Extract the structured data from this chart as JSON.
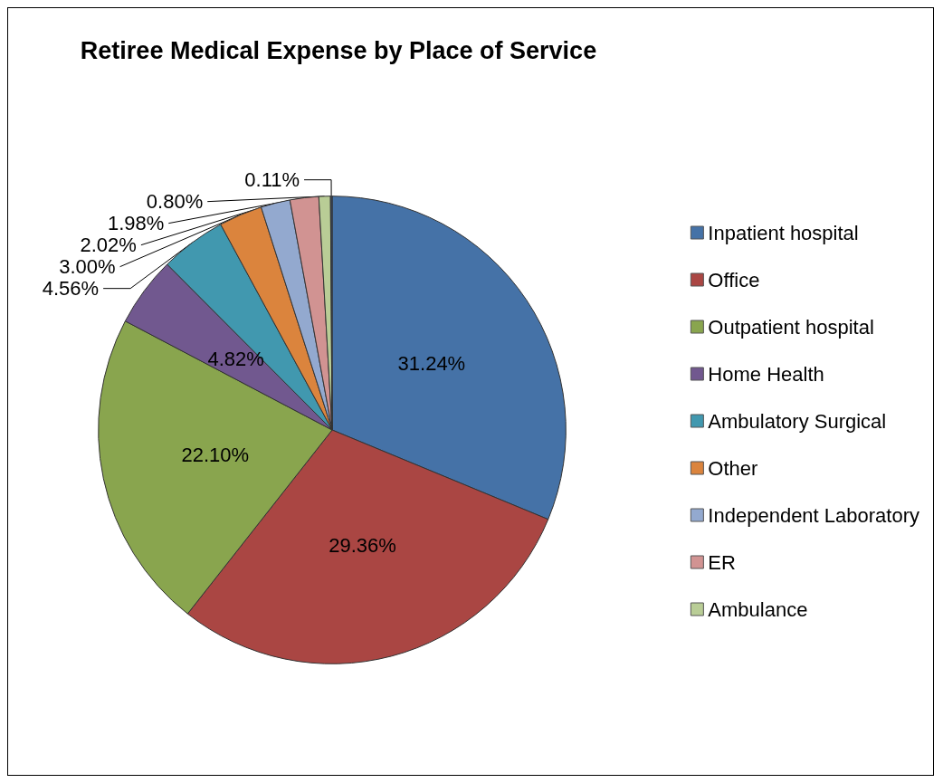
{
  "chart_data": {
    "type": "pie",
    "title": "Retiree Medical Expense by Place of Service",
    "categories": [
      "Inpatient hospital",
      "Office",
      "Outpatient hospital",
      "Home Health",
      "Ambulatory Surgical",
      "Other",
      "Independent Laboratory",
      "ER",
      "Ambulance",
      null
    ],
    "values": [
      31.24,
      29.36,
      22.1,
      4.82,
      4.56,
      3.0,
      2.02,
      1.98,
      0.8,
      0.11
    ],
    "value_labels": [
      "31.24%",
      "29.36%",
      "22.10%",
      "4.82%",
      "4.56%",
      "3.00%",
      "2.02%",
      "1.98%",
      "0.80%",
      "0.11%"
    ],
    "colors": [
      "#4572a7",
      "#aa4643",
      "#89a54e",
      "#71588f",
      "#4198af",
      "#db843d",
      "#93a9cf",
      "#d19392",
      "#b9cd96",
      "#3d4a66"
    ],
    "legend": "right"
  }
}
